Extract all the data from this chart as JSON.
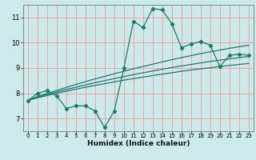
{
  "title": "",
  "xlabel": "Humidex (Indice chaleur)",
  "ylabel": "",
  "background_color": "#cceaea",
  "grid_color": "#f0a0a0",
  "line_color": "#1a7a6e",
  "x_main": [
    0,
    1,
    2,
    3,
    4,
    5,
    6,
    7,
    8,
    9,
    10,
    11,
    12,
    13,
    14,
    15,
    16,
    17,
    18,
    19,
    20,
    21,
    22,
    23
  ],
  "y_main": [
    7.7,
    8.0,
    8.1,
    7.9,
    7.4,
    7.5,
    7.5,
    7.3,
    6.65,
    7.3,
    9.0,
    10.85,
    10.6,
    11.35,
    11.3,
    10.75,
    9.8,
    9.95,
    10.05,
    9.9,
    9.05,
    9.5,
    9.55,
    9.5
  ],
  "y_lin1": [
    7.72,
    7.87,
    7.99,
    8.11,
    8.23,
    8.35,
    8.46,
    8.57,
    8.67,
    8.77,
    8.87,
    8.97,
    9.06,
    9.15,
    9.24,
    9.33,
    9.41,
    9.49,
    9.57,
    9.64,
    9.71,
    9.78,
    9.84,
    9.9
  ],
  "y_lin2": [
    7.72,
    7.84,
    7.95,
    8.05,
    8.15,
    8.24,
    8.33,
    8.42,
    8.5,
    8.58,
    8.66,
    8.74,
    8.81,
    8.88,
    8.95,
    9.02,
    9.08,
    9.14,
    9.2,
    9.26,
    9.31,
    9.36,
    9.41,
    9.46
  ],
  "y_lin3": [
    7.72,
    7.82,
    7.91,
    8.0,
    8.08,
    8.16,
    8.24,
    8.31,
    8.38,
    8.45,
    8.52,
    8.58,
    8.64,
    8.7,
    8.76,
    8.81,
    8.87,
    8.92,
    8.97,
    9.01,
    9.06,
    9.1,
    9.14,
    9.18
  ],
  "ylim": [
    6.5,
    11.5
  ],
  "xlim": [
    -0.5,
    23.5
  ],
  "yticks": [
    7,
    8,
    9,
    10,
    11
  ],
  "xticks": [
    0,
    1,
    2,
    3,
    4,
    5,
    6,
    7,
    8,
    9,
    10,
    11,
    12,
    13,
    14,
    15,
    16,
    17,
    18,
    19,
    20,
    21,
    22,
    23
  ]
}
